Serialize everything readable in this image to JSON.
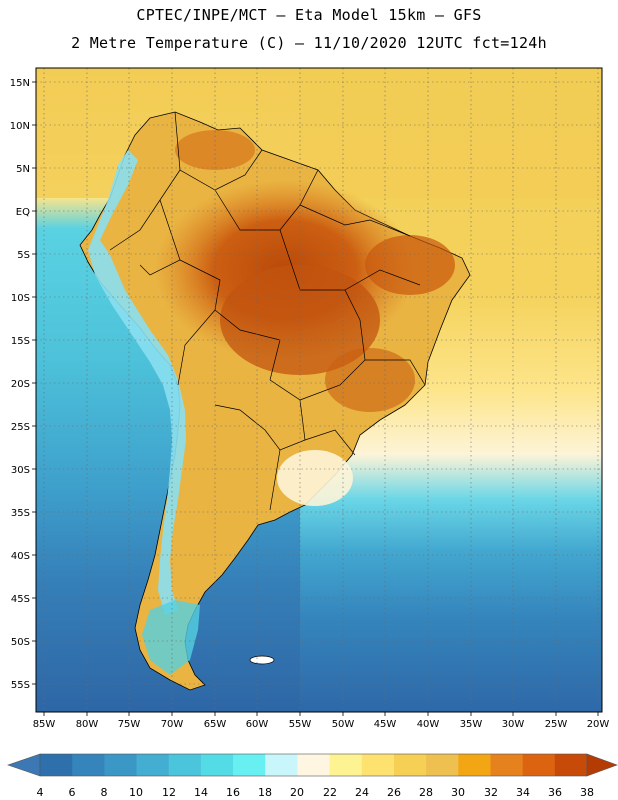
{
  "title_line1": "CPTEC/INPE/MCT –  Eta Model 15km – GFS",
  "title_line2": "2 Metre Temperature (C) – 11/10/2020 12UTC fct=124h",
  "lat_labels": [
    "15N",
    "10N",
    "5N",
    "EQ",
    "5S",
    "10S",
    "15S",
    "20S",
    "25S",
    "30S",
    "35S",
    "40S",
    "45S",
    "50S",
    "55S"
  ],
  "lon_labels": [
    "85W",
    "80W",
    "75W",
    "70W",
    "65W",
    "60W",
    "55W",
    "50W",
    "45W",
    "40W",
    "35W",
    "30W",
    "25W",
    "20W"
  ],
  "colorbar": {
    "ticks": [
      "4",
      "6",
      "8",
      "10",
      "12",
      "14",
      "16",
      "18",
      "20",
      "22",
      "24",
      "26",
      "28",
      "30",
      "32",
      "34",
      "36",
      "38"
    ],
    "colors": [
      "#3c78b4",
      "#2d70ac",
      "#3584bb",
      "#3b97c6",
      "#43aed2",
      "#4bc5dc",
      "#53dce6",
      "#68eff2",
      "#c8f6fa",
      "#fef6e0",
      "#fef393",
      "#fee270",
      "#f6cf55",
      "#eec050",
      "#f2a614",
      "#e6821e",
      "#dc6410",
      "#c84a08",
      "#b43c04"
    ]
  },
  "palette": {
    "ocean_deep": "#2f6dac",
    "ocean_mid": "#3b94c4",
    "ocean_light": "#4ec2d8",
    "atlantic_warm": "#f4d060",
    "pacific_cool": "#5bd0e0",
    "land_base": "#e8b040",
    "land_hot": "#d06a16",
    "land_hottest": "#b94a0a",
    "andes": "#8adff0"
  }
}
